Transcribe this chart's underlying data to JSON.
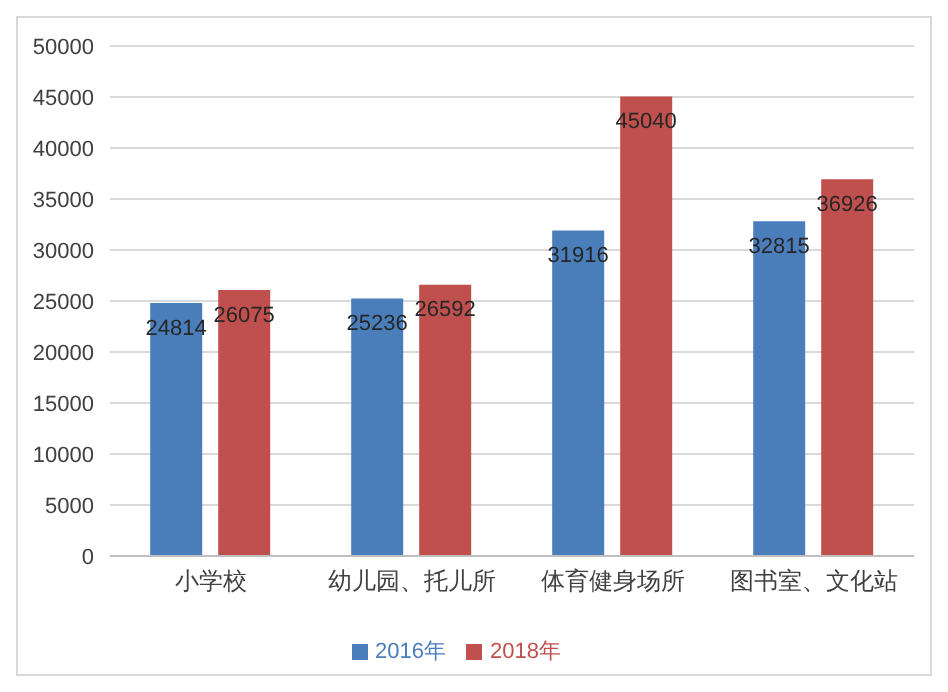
{
  "chart_data": {
    "type": "bar",
    "categories": [
      "小学校",
      "幼儿园、托儿所",
      "体育健身场所",
      "图书室、文化站"
    ],
    "series": [
      {
        "name": "2016年",
        "color": "#4a7ebb",
        "values": [
          24814,
          25236,
          31916,
          32815
        ]
      },
      {
        "name": "2018年",
        "color": "#c0504d",
        "values": [
          26075,
          26592,
          45040,
          36926
        ]
      }
    ],
    "ylim": [
      0,
      50000
    ],
    "yticks": [
      0,
      5000,
      10000,
      15000,
      20000,
      25000,
      30000,
      35000,
      40000,
      45000,
      50000
    ],
    "grid": "y",
    "legend": "bottom",
    "data_labels": true
  }
}
